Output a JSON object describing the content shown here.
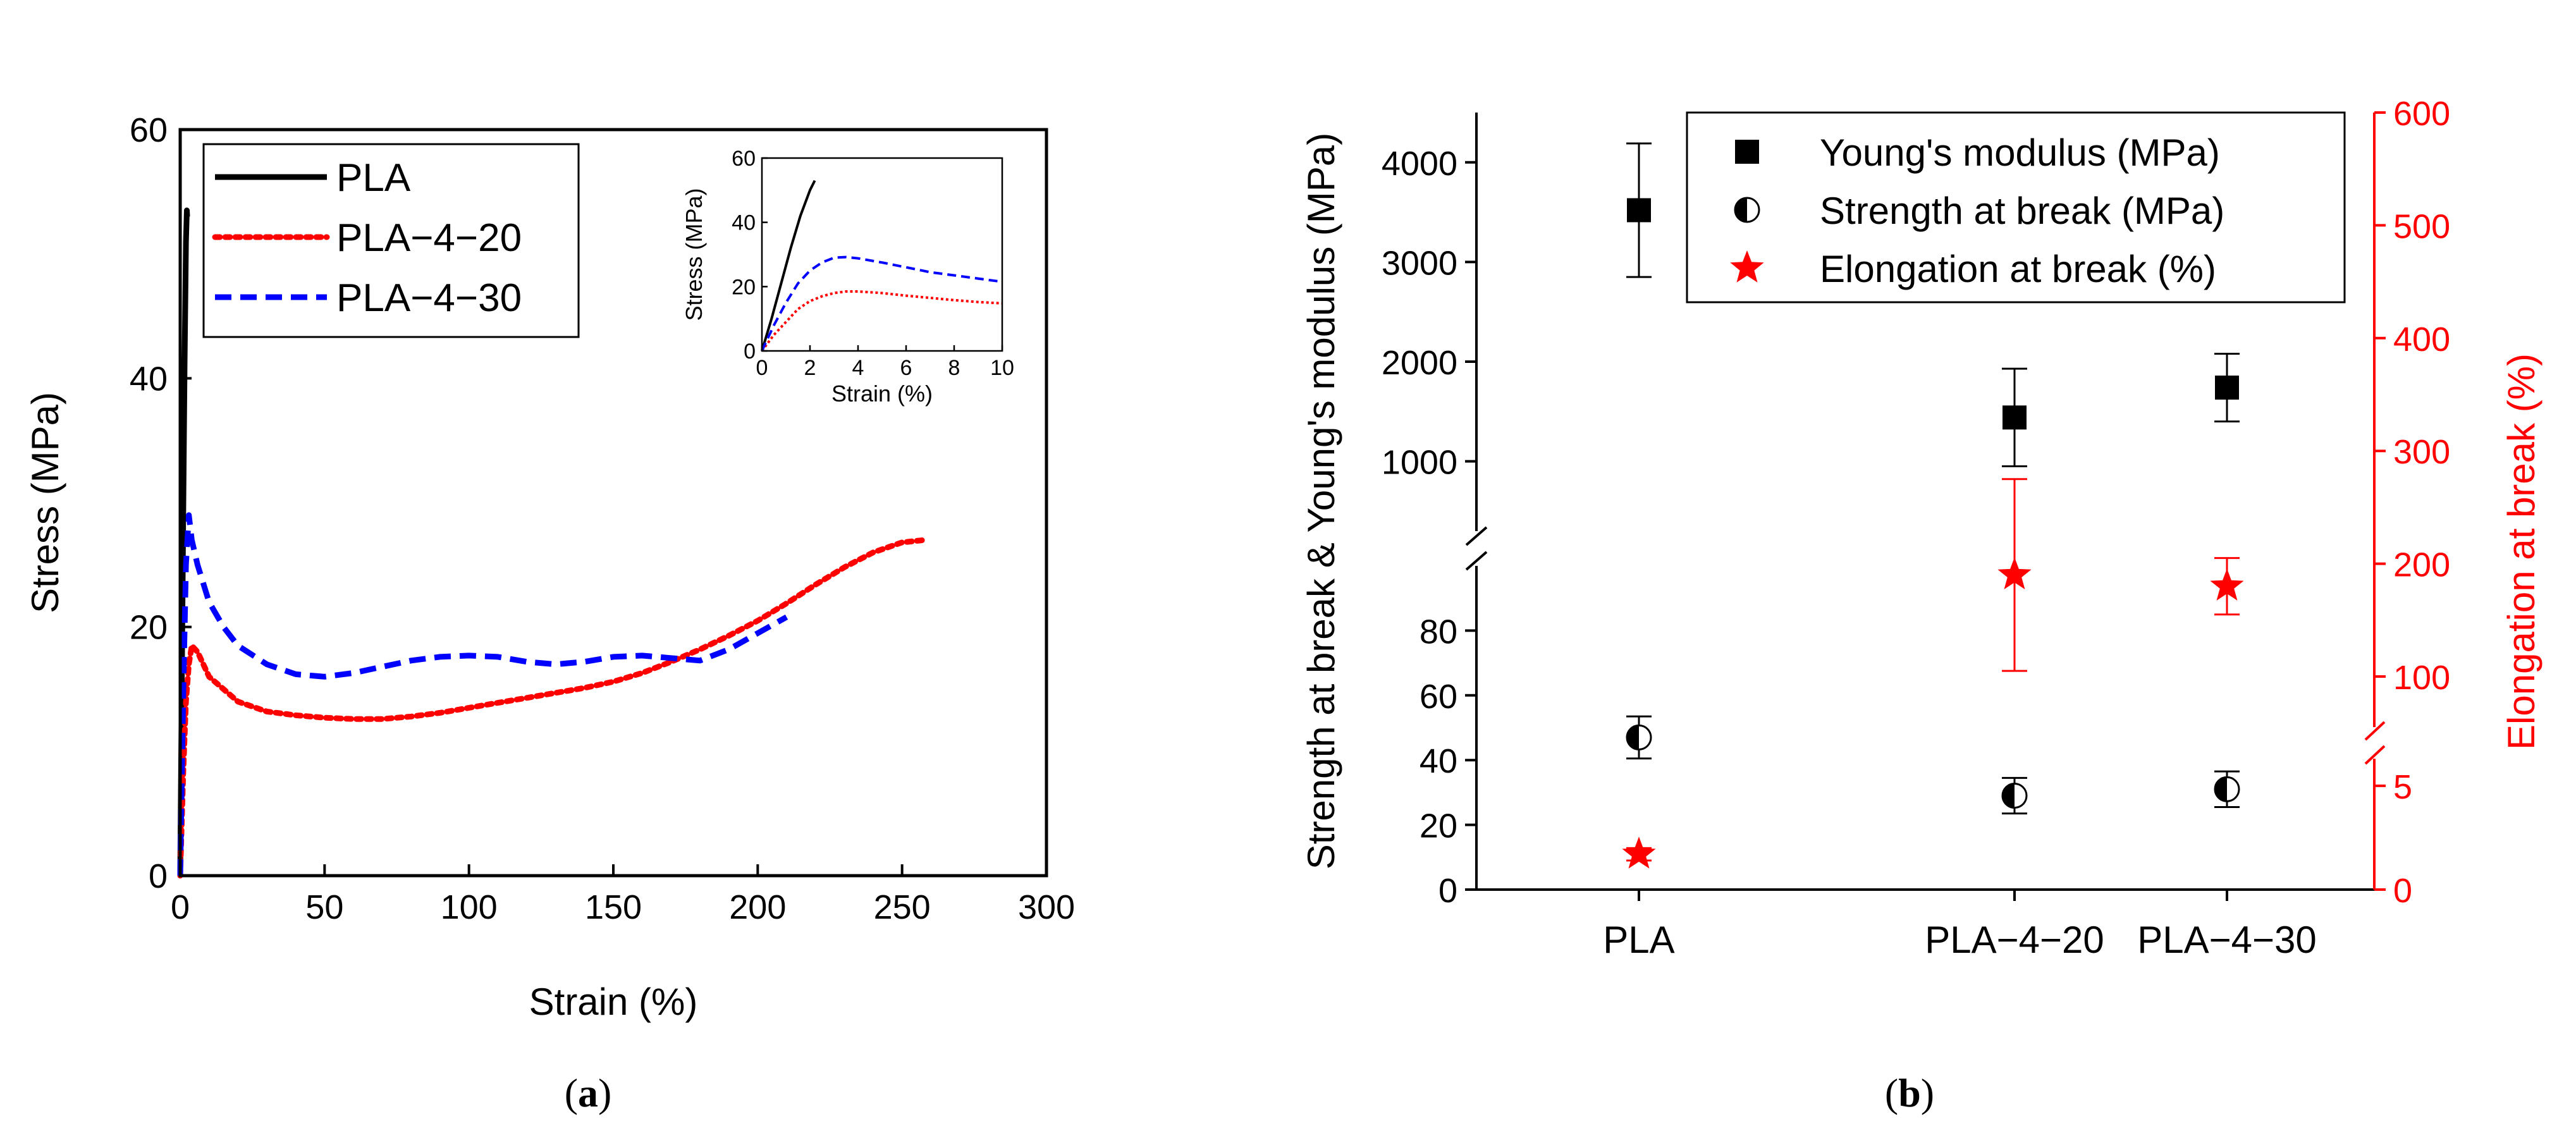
{
  "chart_data": [
    {
      "type": "line",
      "panel_label": "a",
      "xlabel": "Strain (%)",
      "ylabel": "Stress (MPa)",
      "xlim": [
        0,
        300
      ],
      "ylim": [
        0,
        60
      ],
      "xticks": [
        0,
        50,
        100,
        150,
        200,
        250,
        300
      ],
      "yticks": [
        0,
        20,
        40,
        60
      ],
      "legend_position": "top-left",
      "series": [
        {
          "name": "PLA",
          "color": "#000000",
          "style": "solid",
          "x": [
            0,
            0.5,
            1.0,
            1.5,
            2.0,
            2.3,
            2.4
          ],
          "y": [
            0,
            14,
            28,
            41,
            51,
            53.5,
            53
          ]
        },
        {
          "name": "PLA−4−20",
          "color": "#ff0000",
          "style": "dotted",
          "x": [
            0,
            1,
            2,
            3,
            4,
            6,
            10,
            20,
            30,
            40,
            50,
            60,
            70,
            80,
            90,
            100,
            110,
            120,
            130,
            140,
            150,
            160,
            170,
            180,
            190,
            200,
            210,
            220,
            230,
            240,
            250,
            258
          ],
          "y": [
            0,
            8,
            14,
            17,
            18.5,
            18,
            16,
            14,
            13.2,
            12.9,
            12.7,
            12.6,
            12.6,
            12.8,
            13.1,
            13.5,
            13.9,
            14.3,
            14.7,
            15.1,
            15.6,
            16.3,
            17.2,
            18.2,
            19.3,
            20.5,
            21.9,
            23.4,
            24.8,
            26.0,
            26.8,
            27.0
          ]
        },
        {
          "name": "PLA−4−30",
          "color": "#0000ff",
          "style": "dashed",
          "x": [
            0,
            1,
            2,
            3,
            4,
            6,
            10,
            15,
            20,
            30,
            40,
            50,
            60,
            70,
            80,
            90,
            100,
            110,
            120,
            130,
            140,
            150,
            160,
            170,
            180,
            190,
            200,
            210
          ],
          "y": [
            0,
            14,
            25,
            29,
            27,
            25,
            22,
            20,
            18.5,
            17,
            16.2,
            16,
            16.3,
            16.8,
            17.3,
            17.6,
            17.7,
            17.6,
            17.2,
            17.0,
            17.2,
            17.6,
            17.7,
            17.5,
            17.3,
            18.2,
            19.5,
            20.8
          ]
        }
      ],
      "inset": {
        "xlabel": "Strain (%)",
        "ylabel": "Stress (MPa)",
        "xlim": [
          0,
          10
        ],
        "ylim": [
          0,
          60
        ],
        "xticks": [
          0,
          2,
          4,
          6,
          8,
          10
        ],
        "yticks": [
          0,
          20,
          40,
          60
        ],
        "series": [
          {
            "name": "PLA",
            "color": "#000000",
            "style": "solid",
            "x": [
              0,
              0.4,
              0.8,
              1.2,
              1.6,
              2.0,
              2.2
            ],
            "y": [
              0,
              10,
              21,
              32,
              42,
              50,
              53
            ]
          },
          {
            "name": "PLA−4−20",
            "color": "#ff0000",
            "style": "dotted",
            "x": [
              0,
              0.5,
              1,
              1.5,
              2,
              2.5,
              3,
              3.5,
              4,
              5,
              6,
              7,
              8,
              9,
              10
            ],
            "y": [
              0,
              5,
              9,
              13,
              15.5,
              17,
              18,
              18.5,
              18.5,
              18,
              17.2,
              16.5,
              15.8,
              15.2,
              14.8
            ]
          },
          {
            "name": "PLA−4−30",
            "color": "#0000ff",
            "style": "dashed",
            "x": [
              0,
              0.5,
              1,
              1.5,
              2,
              2.5,
              3,
              3.5,
              4,
              5,
              6,
              7,
              8,
              9,
              10
            ],
            "y": [
              0,
              8,
              15,
              21,
              25,
              27.5,
              29,
              29.2,
              28.8,
              27.5,
              26,
              24.5,
              23.5,
              22.5,
              21.5
            ]
          }
        ]
      }
    },
    {
      "type": "scatter",
      "panel_label": "b",
      "categories": [
        "PLA",
        "PLA−4−20",
        "PLA−4−30"
      ],
      "ylabel": "Strength at break & Young's modulus (MPa)",
      "y2label": "Elongation at break (%)",
      "left_axis_segments": {
        "upper": {
          "range": [
            0,
            4500
          ],
          "visible_from": 300,
          "ticks": [
            1000,
            2000,
            3000,
            4000
          ]
        },
        "lower": {
          "range": [
            0,
            100
          ],
          "visible_to": 100,
          "ticks": [
            0,
            20,
            40,
            60,
            80
          ]
        }
      },
      "right_axis_segments": {
        "upper": {
          "range": [
            0,
            600
          ],
          "visible_from": 100,
          "ticks": [
            100,
            200,
            300,
            400,
            500,
            600
          ]
        },
        "lower": {
          "range": [
            0,
            6
          ],
          "ticks": [
            0,
            5
          ]
        }
      },
      "legend_position": "top-right",
      "series": [
        {
          "name": "Young's modulus (MPa)",
          "color": "#000000",
          "marker": "square",
          "axis": "left",
          "values": [
            3520,
            1440,
            1740
          ],
          "errors": [
            670,
            490,
            340
          ]
        },
        {
          "name": "Strength at break (MPa)",
          "color": "#000000",
          "marker": "half-filled-circle",
          "axis": "left",
          "values": [
            47,
            29,
            31
          ],
          "errors": [
            6.5,
            5.5,
            5.5
          ]
        },
        {
          "name": "Elongation at break (%)",
          "color": "#ff0000",
          "marker": "star",
          "axis": "right",
          "values": [
            1.7,
            190,
            180
          ],
          "errors": [
            0.3,
            85,
            25
          ]
        }
      ]
    }
  ]
}
